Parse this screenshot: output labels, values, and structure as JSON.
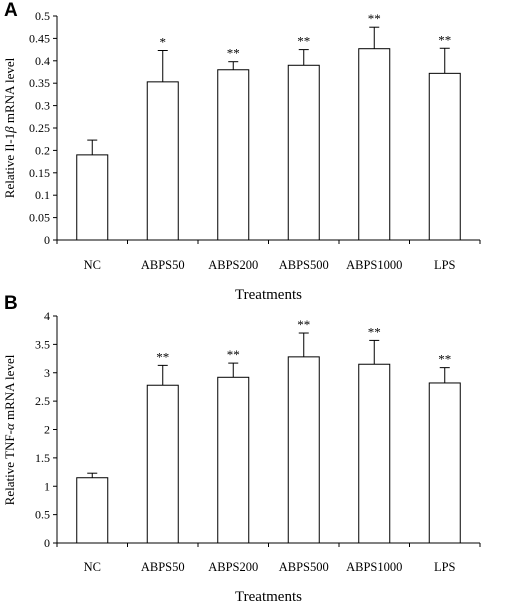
{
  "chart_data": [
    {
      "panel": "A",
      "type": "bar",
      "ylabel_prefix": "Relative Il-1",
      "ylabel_symbol": "β",
      "ylabel_suffix": " mRNA level",
      "xlabel": "Treatments",
      "categories": [
        "NC",
        "ABPS50",
        "ABPS200",
        "ABPS500",
        "ABPS1000",
        "LPS"
      ],
      "values": [
        0.19,
        0.353,
        0.38,
        0.39,
        0.427,
        0.372
      ],
      "errors": [
        0.033,
        0.07,
        0.018,
        0.035,
        0.048,
        0.056
      ],
      "significance": [
        "",
        "*",
        "**",
        "**",
        "**",
        "**"
      ],
      "ylim": [
        0,
        0.5
      ],
      "yticks": [
        "0",
        "0.05",
        "0.1",
        "0.15",
        "0.2",
        "0.25",
        "0.3",
        "0.35",
        "0.4",
        "0.45",
        "0.5"
      ],
      "grid": false
    },
    {
      "panel": "B",
      "type": "bar",
      "ylabel_prefix": "Relative TNF-",
      "ylabel_symbol": "α",
      "ylabel_suffix": " mRNA level",
      "xlabel": "Treatments",
      "categories": [
        "NC",
        "ABPS50",
        "ABPS200",
        "ABPS500",
        "ABPS1000",
        "LPS"
      ],
      "values": [
        1.15,
        2.78,
        2.92,
        3.28,
        3.15,
        2.82
      ],
      "errors": [
        0.08,
        0.35,
        0.25,
        0.42,
        0.42,
        0.27
      ],
      "significance": [
        "",
        "**",
        "**",
        "**",
        "**",
        "**"
      ],
      "ylim": [
        0,
        4
      ],
      "yticks": [
        "0",
        "0.5",
        "1",
        "1.5",
        "2",
        "2.5",
        "3",
        "3.5",
        "4"
      ],
      "grid": false
    }
  ]
}
